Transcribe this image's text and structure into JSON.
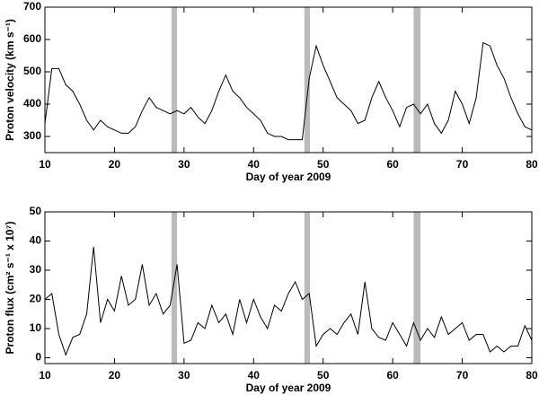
{
  "chart_data": [
    {
      "type": "line",
      "xlabel": "Day of year 2009",
      "ylabel": "Proton velocity (km s⁻¹)",
      "x": [
        10,
        11,
        12,
        13,
        14,
        15,
        16,
        17,
        18,
        19,
        20,
        21,
        22,
        23,
        24,
        25,
        26,
        27,
        28,
        29,
        30,
        31,
        32,
        33,
        34,
        35,
        36,
        37,
        38,
        39,
        40,
        41,
        42,
        43,
        44,
        45,
        46,
        47,
        48,
        49,
        50,
        51,
        52,
        53,
        54,
        55,
        56,
        57,
        58,
        59,
        60,
        61,
        62,
        63,
        64,
        65,
        66,
        67,
        68,
        69,
        70,
        71,
        72,
        73,
        74,
        75,
        76,
        77,
        78,
        79,
        80
      ],
      "series": [
        {
          "color": "#000000",
          "values": [
            340,
            510,
            510,
            460,
            440,
            400,
            350,
            320,
            350,
            330,
            320,
            310,
            310,
            330,
            380,
            420,
            390,
            380,
            370,
            380,
            370,
            390,
            360,
            340,
            380,
            440,
            490,
            440,
            420,
            390,
            370,
            350,
            310,
            300,
            300,
            290,
            290,
            290,
            480,
            580,
            520,
            470,
            420,
            400,
            380,
            340,
            350,
            420,
            470,
            420,
            380,
            330,
            390,
            400,
            370,
            400,
            340,
            310,
            350,
            440,
            400,
            340,
            420,
            590,
            580,
            520,
            480,
            420,
            370,
            330,
            320
          ]
        }
      ],
      "xlim": [
        10,
        80
      ],
      "xticks": [
        10,
        20,
        30,
        40,
        50,
        60,
        70,
        80
      ],
      "ylim": [
        250,
        700
      ],
      "yticks": [
        300,
        400,
        500,
        600,
        700
      ],
      "shaded_regions": [
        [
          28.2,
          29.0
        ],
        [
          47.3,
          48.1
        ],
        [
          63.0,
          64.0
        ]
      ],
      "shade_color": "#bbbbbb"
    },
    {
      "type": "line",
      "xlabel": "Day of year 2009",
      "ylabel": "Proton flux (cm² s⁻¹ x 10⁷)",
      "x": [
        10,
        11,
        12,
        13,
        14,
        15,
        16,
        17,
        18,
        19,
        20,
        21,
        22,
        23,
        24,
        25,
        26,
        27,
        28,
        29,
        30,
        31,
        32,
        33,
        34,
        35,
        36,
        37,
        38,
        39,
        40,
        41,
        42,
        43,
        44,
        45,
        46,
        47,
        48,
        49,
        50,
        51,
        52,
        53,
        54,
        55,
        56,
        57,
        58,
        59,
        60,
        61,
        62,
        63,
        64,
        65,
        66,
        67,
        68,
        69,
        70,
        71,
        72,
        73,
        74,
        75,
        76,
        77,
        78,
        79,
        80
      ],
      "series": [
        {
          "color": "#000000",
          "values": [
            20,
            22,
            8,
            1,
            7,
            8,
            15,
            38,
            12,
            20,
            16,
            28,
            18,
            20,
            32,
            18,
            22,
            15,
            18,
            32,
            5,
            6,
            12,
            10,
            18,
            12,
            15,
            8,
            20,
            12,
            20,
            14,
            10,
            18,
            16,
            22,
            26,
            20,
            22,
            4,
            8,
            10,
            8,
            12,
            15,
            8,
            26,
            10,
            7,
            6,
            12,
            8,
            4,
            12,
            6,
            10,
            7,
            14,
            8,
            10,
            12,
            6,
            8,
            8,
            2,
            4,
            2,
            4,
            4,
            11,
            6
          ]
        }
      ],
      "xlim": [
        10,
        80
      ],
      "xticks": [
        10,
        20,
        30,
        40,
        50,
        60,
        70,
        80
      ],
      "ylim": [
        -2,
        50
      ],
      "yticks": [
        0,
        10,
        20,
        30,
        40,
        50
      ],
      "shaded_regions": [
        [
          28.2,
          29.0
        ],
        [
          47.3,
          48.1
        ],
        [
          63.0,
          64.0
        ]
      ],
      "shade_color": "#bbbbbb"
    }
  ]
}
